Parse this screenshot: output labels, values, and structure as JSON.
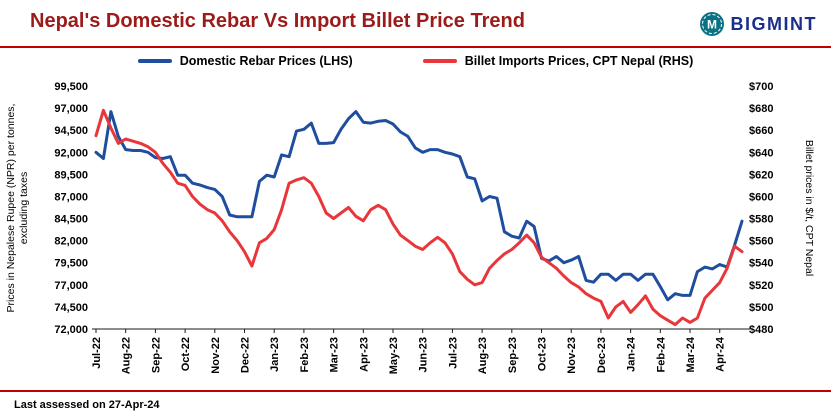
{
  "header": {
    "title": "Nepal's Domestic Rebar Vs Import Billet Price Trend",
    "brand": "BIGMINT",
    "brand_monogram": "M"
  },
  "footer": {
    "last_assessed": "Last assessed on 27-Apr-24"
  },
  "colors": {
    "title": "#9B1B1B",
    "rule": "#C00000",
    "rebar_line": "#1F4E9E",
    "billet_line": "#E8363A",
    "brand_text": "#1A2F8A",
    "brand_icon": "#0B7285",
    "axis_text": "#000000"
  },
  "chart_data": {
    "type": "line",
    "title": "Nepal's Domestic Rebar Vs Import Billet Price Trend",
    "grid": false,
    "legend_position": "top",
    "points_per_month": 4,
    "x_tick_labels": [
      "Jul-22",
      "Aug-22",
      "Sep-22",
      "Oct-22",
      "Nov-22",
      "Dec-22",
      "Jan-23",
      "Feb-23",
      "Mar-23",
      "Apr-23",
      "May-23",
      "Jun-23",
      "Jul-23",
      "Aug-23",
      "Sep-23",
      "Oct-23",
      "Nov-23",
      "Dec-23",
      "Jan-24",
      "Feb-24",
      "Mar-24",
      "Apr-24"
    ],
    "left_axis": {
      "label_line1": "Prices in Nepalese Rupee (NPR) per tonnes,",
      "label_line2": "excluding taxes",
      "min": 72000,
      "max": 99500,
      "tick_step": 2500,
      "tick_labels": [
        "72,000",
        "74,500",
        "77,000",
        "79,500",
        "82,000",
        "84,500",
        "87,000",
        "89,500",
        "92,000",
        "94,500",
        "97,000",
        "99,500"
      ]
    },
    "right_axis": {
      "label": "Billet prices in $/t, CPT Nepal",
      "min": 480,
      "max": 700,
      "tick_step": 20,
      "tick_labels": [
        "$480",
        "$500",
        "$520",
        "$540",
        "$560",
        "$580",
        "$600",
        "$620",
        "$640",
        "$660",
        "$680",
        "$700"
      ]
    },
    "series": [
      {
        "name": "Domestic Rebar Prices (LHS)",
        "axis": "left",
        "color": "#1F4E9E",
        "values": [
          92000,
          91300,
          96600,
          93800,
          92300,
          92200,
          92200,
          92000,
          91400,
          91300,
          91500,
          89400,
          89400,
          88500,
          88300,
          88000,
          87800,
          87000,
          84900,
          84700,
          84700,
          84700,
          88700,
          89400,
          89200,
          91700,
          91500,
          94400,
          94600,
          95300,
          93000,
          93000,
          93100,
          94600,
          95800,
          96600,
          95400,
          95300,
          95500,
          95600,
          95200,
          94300,
          93800,
          92500,
          92000,
          92300,
          92300,
          92000,
          91800,
          91500,
          89200,
          89000,
          86500,
          87000,
          86800,
          83000,
          82500,
          82300,
          84200,
          83600,
          80000,
          79700,
          80200,
          79500,
          79800,
          80200,
          77500,
          77300,
          78200,
          78200,
          77500,
          78200,
          78200,
          77500,
          78200,
          78200,
          76800,
          75300,
          76000,
          75800,
          75800,
          78500,
          79000,
          78800,
          79300,
          79000,
          81500,
          84200
        ]
      },
      {
        "name": "Billet Imports Prices, CPT Nepal (RHS)",
        "axis": "right",
        "color": "#E8363A",
        "values": [
          655,
          678,
          662,
          648,
          652,
          650,
          648,
          645,
          640,
          630,
          622,
          612,
          610,
          600,
          593,
          588,
          585,
          578,
          568,
          560,
          550,
          537,
          558,
          562,
          570,
          588,
          612,
          615,
          617,
          612,
          600,
          585,
          580,
          585,
          590,
          582,
          578,
          588,
          592,
          588,
          575,
          565,
          560,
          555,
          552,
          558,
          563,
          558,
          548,
          532,
          525,
          520,
          522,
          535,
          542,
          548,
          552,
          558,
          565,
          558,
          545,
          540,
          535,
          528,
          522,
          518,
          512,
          508,
          505,
          490,
          500,
          505,
          495,
          502,
          510,
          498,
          492,
          488,
          484,
          490,
          486,
          490,
          508,
          515,
          522,
          535,
          555,
          550
        ]
      }
    ]
  }
}
